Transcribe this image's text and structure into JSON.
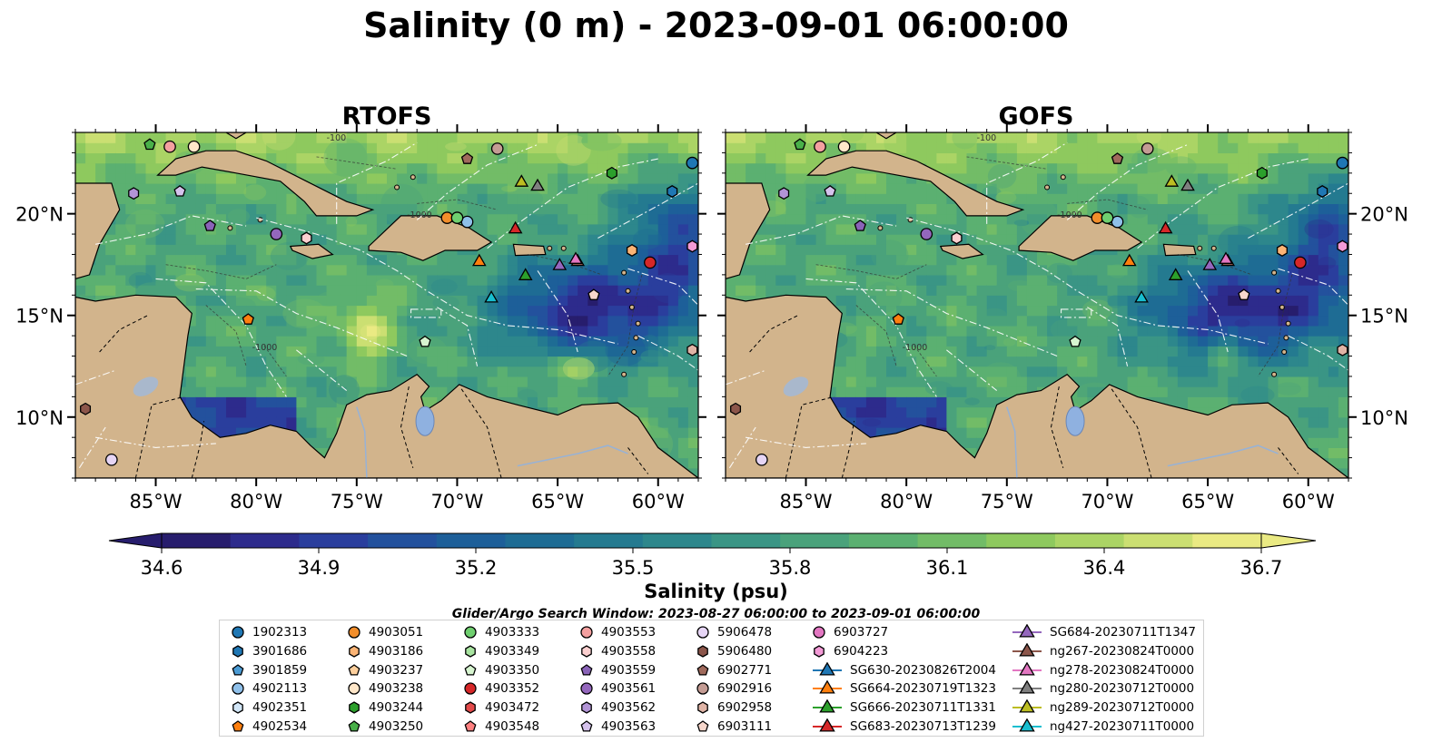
{
  "title": "Salinity (0 m) - 2023-09-01 06:00:00",
  "chart_data": {
    "type": "heatmap",
    "panels": [
      {
        "name": "RTOFS"
      },
      {
        "name": "GOFS"
      }
    ],
    "xticks": [
      "85°W",
      "80°W",
      "75°W",
      "70°W",
      "65°W",
      "60°W"
    ],
    "yticks": [
      "20°N",
      "15°N",
      "10°N"
    ],
    "xlim": [
      -89,
      -58
    ],
    "ylim": [
      7,
      24
    ],
    "colorbar": {
      "label": "Salinity (psu)",
      "ticks": [
        "34.6",
        "34.9",
        "35.2",
        "35.5",
        "35.8",
        "36.1",
        "36.4",
        "36.7"
      ],
      "range": [
        34.6,
        36.7
      ],
      "extend": "both",
      "colors": [
        "#271d6d",
        "#2d2b8c",
        "#2a3e9d",
        "#23519d",
        "#1d5f99",
        "#1e6c94",
        "#247a90",
        "#2d878c",
        "#3a9585",
        "#4aa27b",
        "#5bb071",
        "#72bc67",
        "#8ec95e",
        "#abd465",
        "#cbdf72",
        "#eaea83"
      ]
    },
    "contour_labels": [
      "-100",
      "-1000",
      "-1000"
    ],
    "search_window": "Glider/Argo Search Window: 2023-08-27 06:00:00 to 2023-09-01 06:00:00",
    "observations": [
      {
        "label": "1902313",
        "marker": "circle",
        "color": "#1f77b4",
        "lon": -58.3,
        "lat": 22.5
      },
      {
        "label": "3901686",
        "marker": "hexagon",
        "color": "#1f77b4",
        "lon": -59.3,
        "lat": 21.1
      },
      {
        "label": "3901859",
        "marker": "pentagon",
        "color": "#4a9bd4",
        "lon": null,
        "lat": null
      },
      {
        "label": "4902113",
        "marker": "circle",
        "color": "#8fc0ea",
        "lon": -69.5,
        "lat": 19.6
      },
      {
        "label": "4902351",
        "marker": "hexagon",
        "color": "#d2e6f7",
        "lon": null,
        "lat": null
      },
      {
        "label": "4902534",
        "marker": "pentagon",
        "color": "#ff7f0e",
        "lon": -80.4,
        "lat": 14.8
      },
      {
        "label": "4903051",
        "marker": "circle",
        "color": "#f28e2b",
        "lon": -70.5,
        "lat": 19.8
      },
      {
        "label": "4903186",
        "marker": "hexagon",
        "color": "#fbb475",
        "lon": -61.3,
        "lat": 18.2
      },
      {
        "label": "4903237",
        "marker": "pentagon",
        "color": "#fdcf9c",
        "lon": null,
        "lat": null
      },
      {
        "label": "4903238",
        "marker": "circle",
        "color": "#ffe7c9",
        "lon": -83.1,
        "lat": 23.3
      },
      {
        "label": "4903244",
        "marker": "hexagon",
        "color": "#2ca02c",
        "lon": -62.3,
        "lat": 22.0
      },
      {
        "label": "4903250",
        "marker": "pentagon",
        "color": "#49b049",
        "lon": -85.3,
        "lat": 23.4
      },
      {
        "label": "4903333",
        "marker": "circle",
        "color": "#6fcf6f",
        "lon": -70.0,
        "lat": 19.8
      },
      {
        "label": "4903349",
        "marker": "hexagon",
        "color": "#a8e4a0",
        "lon": null,
        "lat": null
      },
      {
        "label": "4903350",
        "marker": "pentagon",
        "color": "#d7f5d0",
        "lon": -71.6,
        "lat": 13.7
      },
      {
        "label": "4903352",
        "marker": "circle",
        "color": "#d62728",
        "lon": -60.4,
        "lat": 17.6
      },
      {
        "label": "4903472",
        "marker": "hexagon",
        "color": "#e34a4a",
        "lon": null,
        "lat": null
      },
      {
        "label": "4903548",
        "marker": "pentagon",
        "color": "#ff8080",
        "lon": null,
        "lat": null
      },
      {
        "label": "4903553",
        "marker": "circle",
        "color": "#f4a0a0",
        "lon": -84.3,
        "lat": 23.3
      },
      {
        "label": "4903558",
        "marker": "hexagon",
        "color": "#fcd0d0",
        "lon": -77.5,
        "lat": 18.8
      },
      {
        "label": "4903559",
        "marker": "pentagon",
        "color": "#8a63b8",
        "lon": -82.3,
        "lat": 19.4
      },
      {
        "label": "4903561",
        "marker": "circle",
        "color": "#9467bd",
        "lon": -79.0,
        "lat": 19.0
      },
      {
        "label": "4903562",
        "marker": "hexagon",
        "color": "#b294d6",
        "lon": -86.1,
        "lat": 21.0
      },
      {
        "label": "4903563",
        "marker": "pentagon",
        "color": "#d5c2ec",
        "lon": -83.8,
        "lat": 21.1
      },
      {
        "label": "5906478",
        "marker": "circle",
        "color": "#e6d5f5",
        "lon": -87.2,
        "lat": 7.9
      },
      {
        "label": "5906480",
        "marker": "hexagon",
        "color": "#8c564b",
        "lon": -88.5,
        "lat": 10.4
      },
      {
        "label": "6902771",
        "marker": "pentagon",
        "color": "#a06a5c",
        "lon": -69.5,
        "lat": 22.7
      },
      {
        "label": "6902916",
        "marker": "circle",
        "color": "#c49c94",
        "lon": -68.0,
        "lat": 23.2
      },
      {
        "label": "6902958",
        "marker": "hexagon",
        "color": "#e0b4a6",
        "lon": -58.3,
        "lat": 13.3
      },
      {
        "label": "6903111",
        "marker": "pentagon",
        "color": "#f7d7cc",
        "lon": -63.2,
        "lat": 16.0
      },
      {
        "label": "6903727",
        "marker": "circle",
        "color": "#e377c2",
        "lon": null,
        "lat": null
      },
      {
        "label": "6904223",
        "marker": "hexagon",
        "color": "#f39ad6",
        "lon": -58.3,
        "lat": 18.4
      },
      {
        "label": "SG630-20230826T2004",
        "marker": "triangle",
        "color": "#1f77b4",
        "lon": null,
        "lat": null
      },
      {
        "label": "SG664-20230719T1323",
        "marker": "triangle",
        "color": "#ff7f0e",
        "lon": -68.9,
        "lat": 17.7
      },
      {
        "label": "SG666-20230711T1331",
        "marker": "triangle",
        "color": "#2ca02c",
        "lon": -66.6,
        "lat": 17.0
      },
      {
        "label": "SG683-20230713T1239",
        "marker": "triangle",
        "color": "#d62728",
        "lon": -67.1,
        "lat": 19.3
      },
      {
        "label": "SG684-20230711T1347",
        "marker": "triangle",
        "color": "#9467bd",
        "lon": -64.9,
        "lat": 17.5
      },
      {
        "label": "ng267-20230824T0000",
        "marker": "triangle",
        "color": "#8c564b",
        "lon": -64.0,
        "lat": 17.7
      },
      {
        "label": "ng278-20230824T0000",
        "marker": "triangle",
        "color": "#e377c2",
        "lon": -64.1,
        "lat": 17.8
      },
      {
        "label": "ng280-20230712T0000",
        "marker": "triangle",
        "color": "#7f7f7f",
        "lon": -66.0,
        "lat": 21.4
      },
      {
        "label": "ng289-20230712T0000",
        "marker": "triangle",
        "color": "#bcbd22",
        "lon": -66.8,
        "lat": 21.6
      },
      {
        "label": "ng427-20230711T0000",
        "marker": "triangle",
        "color": "#17becf",
        "lon": -68.3,
        "lat": 15.9
      }
    ]
  },
  "colors": {
    "land": "#d2b48c",
    "lake": "#8fb1e0",
    "background": "#ffffff"
  }
}
